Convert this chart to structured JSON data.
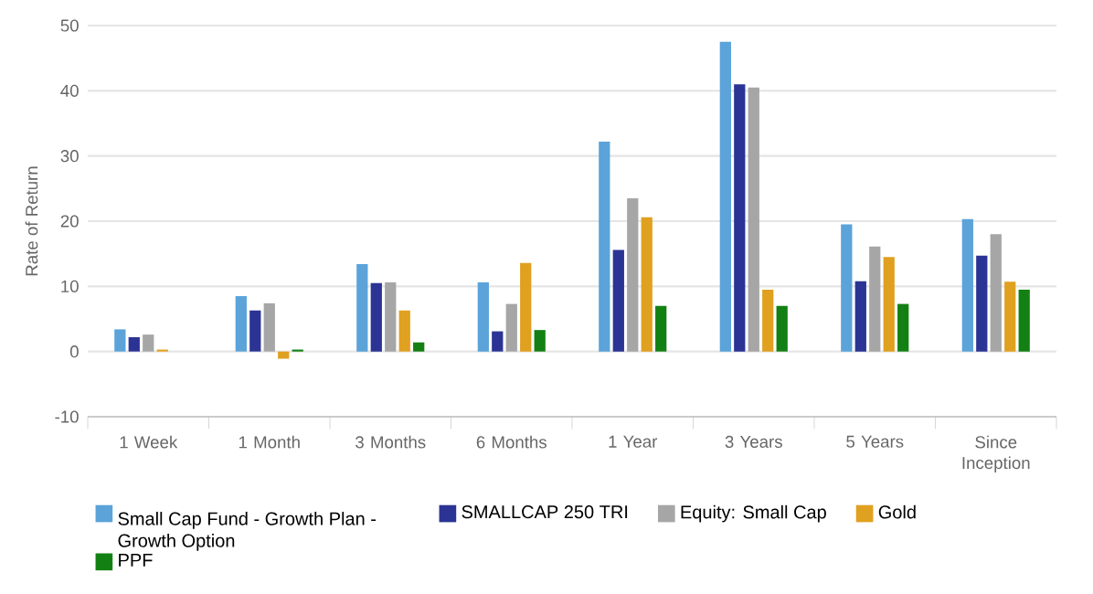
{
  "chart_data": {
    "type": "bar",
    "ylabel": "Rate of Return",
    "categories": [
      "1 Week",
      "1 Month",
      "3 Months",
      "6 Months",
      "1 Year",
      "3 Years",
      "5 Years",
      "Since Inception"
    ],
    "series": [
      {
        "name": "Small Cap Fund - Growth Plan - Growth Option",
        "color": "#5ba3d9",
        "values": [
          3.4,
          8.5,
          13.4,
          10.6,
          32.2,
          47.5,
          19.5,
          20.3
        ]
      },
      {
        "name": "SMALLCAP 250 TRI",
        "color": "#2b3494",
        "values": [
          2.2,
          6.3,
          10.5,
          3.1,
          15.6,
          41.0,
          10.8,
          14.7
        ]
      },
      {
        "name": "Equity: Small Cap",
        "color": "#a6a6a6",
        "values": [
          2.6,
          7.4,
          10.6,
          7.3,
          23.5,
          40.5,
          16.1,
          18.0
        ]
      },
      {
        "name": "Gold",
        "color": "#e0a020",
        "values": [
          0.3,
          -1.1,
          6.3,
          13.6,
          20.6,
          9.5,
          14.5,
          10.7
        ]
      },
      {
        "name": "PPF",
        "color": "#138013",
        "values": [
          0.0,
          0.3,
          1.4,
          3.3,
          7.0,
          7.0,
          7.3,
          9.5
        ]
      }
    ],
    "ylim": [
      -10,
      50
    ],
    "yticks": [
      -10,
      0,
      10,
      20,
      30,
      40,
      50
    ],
    "grid": "y",
    "legend": "bottom"
  }
}
